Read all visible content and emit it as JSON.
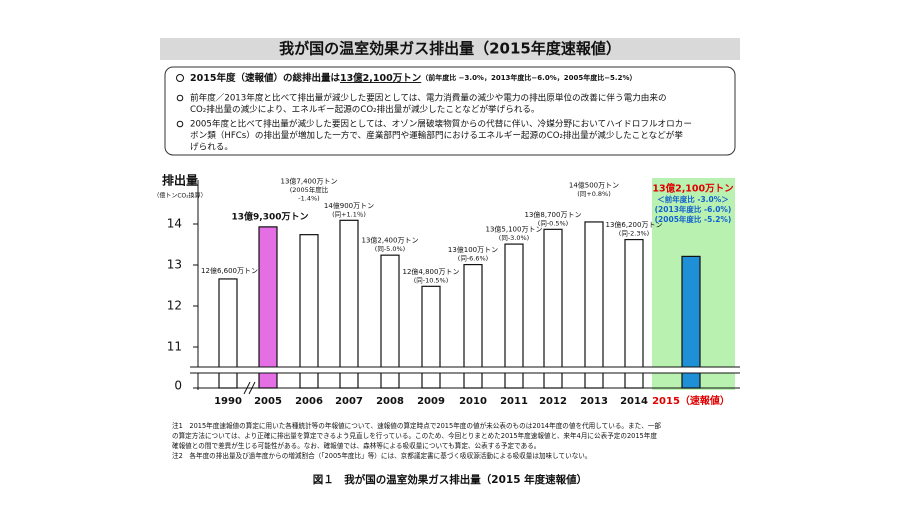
{
  "header": {
    "title": "我が国の温室効果ガス排出量（2015年度速報値）"
  },
  "summary": {
    "lead": {
      "text": "2015年度（速報値）の総排出量は",
      "highlight": "13億2,100万トン",
      "detail": "（前年度比 −3.0%，2013年度比−6.0%，2005年度比−5.2%）"
    },
    "bullets": [
      [
        "前年度／2013年度と比べて排出量が減少した要因としては、電力消費量の減少や電力の排出原単位の改善に伴う電力由来の",
        "CO₂排出量の減少により、エネルギー起源のCO₂排出量が減少したことなどが挙げられる。"
      ],
      [
        "2005年度と比べて排出量が減少した要因としては、オゾン層破壊物質からの代替に伴い、冷媒分野においてハイドロフルオロカー",
        "ボン類（HFCs）の排出量が増加した一方で、産業部門や運輸部門におけるエネルギー起源のCO₂排出量が減少したことなどが挙",
        "げられる。"
      ]
    ]
  },
  "chart_data": {
    "type": "bar",
    "y_label": "排出量",
    "y_unit": "（億トンCO₂換算）",
    "categories": [
      "1990",
      "2005",
      "2006",
      "2007",
      "2008",
      "2009",
      "2010",
      "2011",
      "2012",
      "2013",
      "2014",
      "2015（速報値）"
    ],
    "values": [
      12.66,
      13.93,
      13.74,
      14.09,
      13.24,
      12.48,
      13.01,
      13.51,
      13.87,
      14.05,
      13.62,
      13.21
    ],
    "value_labels": [
      "12億6,600万トン",
      "13億9,300万トン",
      "13億7,400万トン",
      "14億900万トン",
      "13億2,400万トン",
      "12億4,800万トン",
      "13億100万トン",
      "13億5,100万トン",
      "13億8,700万トン",
      "14億500万トン",
      "13億6,200万トン",
      "13億2,100万トン"
    ],
    "bar_notes": [
      [],
      [],
      [
        "(2005年度比",
        "-1.4%)"
      ],
      [
        "(同+1.1％)"
      ],
      [
        "(同-5.0%)"
      ],
      [
        "(同-10.5%)"
      ],
      [
        "(同-6.6%)"
      ],
      [
        "(同-3.0%)"
      ],
      [
        "(同-0.5%)"
      ],
      [
        "(同+0.8%)"
      ],
      [
        "(同-2.3%)"
      ],
      [
        "＜前年度比 -3.0%＞",
        "(2013年度比 -6.0%)",
        "(2005年度比 -5.2%)"
      ]
    ],
    "colors": [
      "#ffffff",
      "#e46ee4",
      "#ffffff",
      "#ffffff",
      "#ffffff",
      "#ffffff",
      "#ffffff",
      "#ffffff",
      "#ffffff",
      "#ffffff",
      "#ffffff",
      "#1f8fd6"
    ],
    "ylim": [
      10,
      15
    ],
    "yticks": [
      0,
      11,
      12,
      13,
      14
    ],
    "axis_break": true
  },
  "notes": [
    "注1　2015年度速報値の算定に用いた各種統計等の年報値について、速報値の算定時点で2015年度の値が未公表のものは2014年度の値を代用している。また、一部",
    "の算定方法については、より正確に排出量を算定できるよう見直しを行っている。このため、今回とりまとめた2015年度速報値と、来年4月に公表予定の2015年度",
    "確報値との間で差異が生じる可能性がある。なお、確報値では、森林等による吸収量についても算定、公表する予定である。",
    "注2　各年度の排出量及び過年度からの増減割合（「2005年度比」等）には、京都議定書に基づく吸収源活動による吸収量は加味していない。"
  ],
  "caption": "図１　我が国の温室効果ガス排出量（2015 年度速報値）"
}
